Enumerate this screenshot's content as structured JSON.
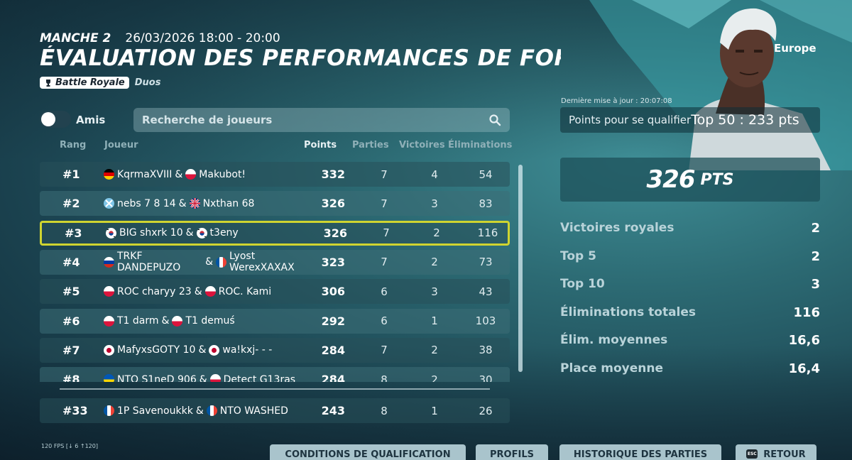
{
  "header": {
    "round_label": "MANCHE 2",
    "datetime": "26/03/2026 18:00 - 20:00",
    "title": "ÉVALUATION DES PERFORMANCES DE FORTNITE",
    "mode_tag": "Battle Royale",
    "team_tag": "Duos"
  },
  "filters": {
    "friends_label": "Amis",
    "search_placeholder": "Recherche de joueurs"
  },
  "table": {
    "columns": {
      "rank": "Rang",
      "player": "Joueur",
      "points": "Points",
      "games": "Parties",
      "wins": "Victoires",
      "elims": "Éliminations"
    },
    "rows": [
      {
        "rank": "#1",
        "p1": "KqrmaXVIII",
        "f1": "de",
        "sep": "&",
        "p2": "Makubot!",
        "f2": "pl",
        "points": "332",
        "games": "7",
        "wins": "4",
        "elims": "54"
      },
      {
        "rank": "#2",
        "p1": "nebs 7 8 14",
        "f1": "x",
        "sep": "&",
        "p2": "Nxthan 68",
        "f2": "gb",
        "points": "326",
        "games": "7",
        "wins": "3",
        "elims": "83"
      },
      {
        "rank": "#3",
        "p1": "BIG shxrk 10",
        "f1": "kr",
        "sep": "&",
        "p2": "t3eny",
        "f2": "kr",
        "points": "326",
        "games": "7",
        "wins": "2",
        "elims": "116"
      },
      {
        "rank": "#4",
        "p1": "TRKF DANDEPUZO",
        "f1": "ru",
        "sep": "&",
        "p2": "Lyost WerexXAXAX",
        "f2": "fr",
        "points": "323",
        "games": "7",
        "wins": "2",
        "elims": "73"
      },
      {
        "rank": "#5",
        "p1": "ROC charyy 23",
        "f1": "pl",
        "sep": "&",
        "p2": "ROC. Kami",
        "f2": "pl",
        "points": "306",
        "games": "6",
        "wins": "3",
        "elims": "43"
      },
      {
        "rank": "#6",
        "p1": "T1 darm",
        "f1": "pl",
        "sep": "&",
        "p2": "T1 demuś",
        "f2": "pl",
        "points": "292",
        "games": "6",
        "wins": "1",
        "elims": "103"
      },
      {
        "rank": "#7",
        "p1": "MafyxsGOTY 10",
        "f1": "jp",
        "sep": "&",
        "p2": "wa!kxj- - -",
        "f2": "jp",
        "points": "284",
        "games": "7",
        "wins": "2",
        "elims": "38"
      },
      {
        "rank": "#8",
        "p1": "NTO S1neD 906",
        "f1": "ua",
        "sep": "&",
        "p2": "Detect G13ras",
        "f2": "pl",
        "points": "284",
        "games": "8",
        "wins": "2",
        "elims": "30"
      }
    ],
    "my_row": {
      "rank": "#33",
      "p1": "1P Savenoukkk",
      "f1": "fr",
      "sep": "&",
      "p2": "NTO WASHED",
      "f2": "fr",
      "points": "243",
      "games": "8",
      "wins": "1",
      "elims": "26"
    }
  },
  "panel": {
    "region": "Europe",
    "last_update": "Dernière mise à jour : 20:07:08",
    "qualify_label": "Points pour se qualifier",
    "qualify_value": "Top 50 : 233 pts",
    "total_points": "326",
    "points_unit": "PTS",
    "stats": [
      {
        "label": "Victoires royales",
        "value": "2"
      },
      {
        "label": "Top 5",
        "value": "2"
      },
      {
        "label": "Top 10",
        "value": "3"
      },
      {
        "label": "Éliminations totales",
        "value": "116"
      },
      {
        "label": "Élim. moyennes",
        "value": "16,6"
      },
      {
        "label": "Place moyenne",
        "value": "16,4"
      }
    ]
  },
  "footer": {
    "fps": "120 FPS [↓ 6 ↑120]",
    "buttons": {
      "qualification": "CONDITIONS DE QUALIFICATION",
      "profiles": "PROFILS",
      "history": "HISTORIQUE DES PARTIES",
      "back": "RETOUR",
      "esc": "ESC"
    }
  },
  "colors": {
    "highlight": "#cfd430",
    "button_bg": "#a9c4cc"
  },
  "icons": [
    "trophy-icon",
    "search-icon",
    "esc-key-icon",
    "flag-icons"
  ]
}
